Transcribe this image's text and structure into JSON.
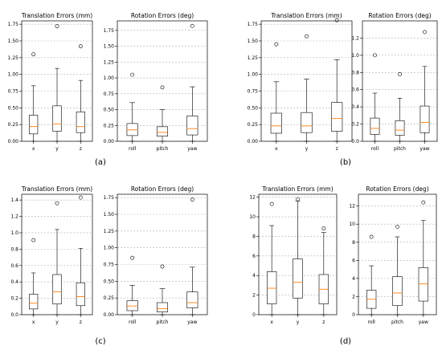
{
  "chart_data": [
    {
      "panel": "(a)",
      "charts": [
        {
          "type": "box",
          "title": "Translation Errors (mm)",
          "ylim": [
            0,
            1.8
          ],
          "ticks": [
            "0.00",
            "0.25",
            "0.50",
            "0.75",
            "1.00",
            "1.25",
            "1.50",
            "1.75"
          ],
          "categories": [
            "x",
            "y",
            "z"
          ],
          "boxes": [
            {
              "whislo": 0.0,
              "q1": 0.11,
              "med": 0.22,
              "q3": 0.39,
              "whishi": 0.83,
              "fliers": [
                1.3
              ]
            },
            {
              "whislo": 0.0,
              "q1": 0.15,
              "med": 0.26,
              "q3": 0.53,
              "whishi": 1.09,
              "fliers": [
                1.72
              ]
            },
            {
              "whislo": 0.0,
              "q1": 0.13,
              "med": 0.22,
              "q3": 0.44,
              "whishi": 0.91,
              "fliers": [
                1.42
              ]
            }
          ]
        },
        {
          "type": "box",
          "title": "Rotation Errors (deg)",
          "ylim": [
            0,
            1.9
          ],
          "ticks": [
            "0.00",
            "0.25",
            "0.50",
            "0.75",
            "1.00",
            "1.25",
            "1.50",
            "1.75"
          ],
          "categories": [
            "roll",
            "pitch",
            "yaw"
          ],
          "boxes": [
            {
              "whislo": 0.0,
              "q1": 0.09,
              "med": 0.18,
              "q3": 0.28,
              "whishi": 0.61,
              "fliers": [
                1.05
              ]
            },
            {
              "whislo": 0.0,
              "q1": 0.08,
              "med": 0.14,
              "q3": 0.23,
              "whishi": 0.5,
              "fliers": [
                0.85
              ]
            },
            {
              "whislo": 0.0,
              "q1": 0.1,
              "med": 0.2,
              "q3": 0.4,
              "whishi": 0.86,
              "fliers": [
                1.82
              ]
            }
          ]
        }
      ]
    },
    {
      "panel": "(b)",
      "charts": [
        {
          "type": "box",
          "title": "Translation Errors (mm)",
          "ylim": [
            0,
            1.8
          ],
          "ticks": [
            "0.00",
            "0.25",
            "0.50",
            "0.75",
            "1.00",
            "1.25",
            "1.50",
            "1.75"
          ],
          "categories": [
            "x",
            "y",
            "z"
          ],
          "boxes": [
            {
              "whislo": 0.0,
              "q1": 0.12,
              "med": 0.23,
              "q3": 0.42,
              "whishi": 0.89,
              "fliers": [
                1.45
              ]
            },
            {
              "whislo": 0.0,
              "q1": 0.13,
              "med": 0.23,
              "q3": 0.43,
              "whishi": 0.93,
              "fliers": [
                1.57
              ]
            },
            {
              "whislo": 0.0,
              "q1": 0.15,
              "med": 0.34,
              "q3": 0.58,
              "whishi": 1.22,
              "fliers": [
                1.81
              ]
            }
          ]
        },
        {
          "type": "box",
          "title": "Rotation Errors (deg)",
          "ylim": [
            0,
            1.4
          ],
          "ticks": [
            "0.0",
            "0.2",
            "0.4",
            "0.6",
            "0.8",
            "1.0",
            "1.2"
          ],
          "categories": [
            "roll",
            "pitch",
            "yaw"
          ],
          "boxes": [
            {
              "whislo": 0.0,
              "q1": 0.08,
              "med": 0.15,
              "q3": 0.27,
              "whishi": 0.56,
              "fliers": [
                1.0
              ]
            },
            {
              "whislo": 0.0,
              "q1": 0.07,
              "med": 0.13,
              "q3": 0.24,
              "whishi": 0.5,
              "fliers": [
                0.78
              ]
            },
            {
              "whislo": 0.0,
              "q1": 0.1,
              "med": 0.22,
              "q3": 0.41,
              "whishi": 0.87,
              "fliers": [
                1.27
              ]
            }
          ]
        }
      ]
    },
    {
      "panel": "(c)",
      "charts": [
        {
          "type": "box",
          "title": "Translation Errors (mm)",
          "ylim": [
            0,
            1.47
          ],
          "ticks": [
            "0.0",
            "0.2",
            "0.4",
            "0.6",
            "0.8",
            "1.0",
            "1.2",
            "1.4"
          ],
          "categories": [
            "x",
            "y",
            "z"
          ],
          "boxes": [
            {
              "whislo": 0.0,
              "q1": 0.07,
              "med": 0.14,
              "q3": 0.25,
              "whishi": 0.51,
              "fliers": [
                0.91
              ]
            },
            {
              "whislo": 0.0,
              "q1": 0.13,
              "med": 0.28,
              "q3": 0.49,
              "whishi": 1.04,
              "fliers": [
                1.36
              ]
            },
            {
              "whislo": 0.0,
              "q1": 0.11,
              "med": 0.22,
              "q3": 0.39,
              "whishi": 0.81,
              "fliers": [
                1.43
              ]
            }
          ]
        },
        {
          "type": "box",
          "title": "Rotation Errors (deg)",
          "ylim": [
            0,
            1.8
          ],
          "ticks": [
            "0.00",
            "0.25",
            "0.50",
            "0.75",
            "1.00",
            "1.25",
            "1.50",
            "1.75"
          ],
          "categories": [
            "roll",
            "pitch",
            "yaw"
          ],
          "boxes": [
            {
              "whislo": 0.0,
              "q1": 0.06,
              "med": 0.13,
              "q3": 0.21,
              "whishi": 0.44,
              "fliers": [
                0.85
              ]
            },
            {
              "whislo": 0.0,
              "q1": 0.04,
              "med": 0.09,
              "q3": 0.18,
              "whishi": 0.39,
              "fliers": [
                0.72
              ]
            },
            {
              "whislo": 0.0,
              "q1": 0.1,
              "med": 0.18,
              "q3": 0.34,
              "whishi": 0.71,
              "fliers": [
                1.72
              ]
            }
          ]
        }
      ]
    },
    {
      "panel": "(d)",
      "charts": [
        {
          "type": "box",
          "title": "Translation Errors (mm)",
          "ylim": [
            0,
            12.3
          ],
          "ticks": [
            "0",
            "2",
            "4",
            "6",
            "8",
            "10",
            "12"
          ],
          "categories": [
            "x",
            "y",
            "z"
          ],
          "boxes": [
            {
              "whislo": 0.0,
              "q1": 1.1,
              "med": 2.7,
              "q3": 4.4,
              "whishi": 9.1,
              "fliers": [
                11.3
              ]
            },
            {
              "whislo": 0.0,
              "q1": 1.7,
              "med": 3.3,
              "q3": 5.7,
              "whishi": 11.6,
              "fliers": [
                11.8
              ]
            },
            {
              "whislo": 0.0,
              "q1": 1.1,
              "med": 2.6,
              "q3": 4.1,
              "whishi": 8.4,
              "fliers": [
                8.8
              ]
            }
          ]
        },
        {
          "type": "box",
          "title": "Rotation Errors (deg)",
          "ylim": [
            0,
            13.3
          ],
          "ticks": [
            "0",
            "2",
            "4",
            "6",
            "8",
            "10",
            "12"
          ],
          "categories": [
            "roll",
            "pitch",
            "yaw"
          ],
          "boxes": [
            {
              "whislo": 0.0,
              "q1": 0.7,
              "med": 1.7,
              "q3": 2.7,
              "whishi": 5.4,
              "fliers": [
                8.6
              ]
            },
            {
              "whislo": 0.0,
              "q1": 1.0,
              "med": 2.4,
              "q3": 4.2,
              "whishi": 8.6,
              "fliers": [
                9.7
              ]
            },
            {
              "whislo": 0.0,
              "q1": 1.5,
              "med": 3.4,
              "q3": 5.2,
              "whishi": 10.4,
              "fliers": [
                12.4
              ]
            }
          ]
        }
      ]
    }
  ],
  "colors": {
    "median": "#ff7f0e",
    "grid": "#b0b0b0",
    "box": "#000000"
  }
}
